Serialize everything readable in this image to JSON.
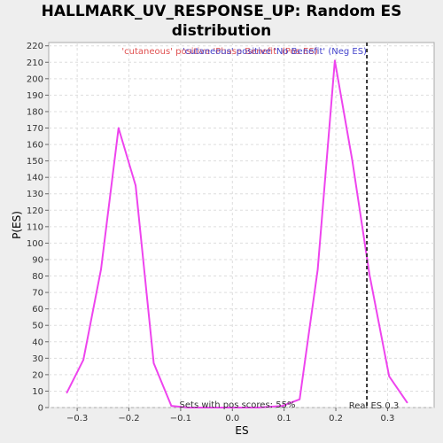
{
  "chart_data": {
    "type": "line",
    "title": "HALLMARK_UV_RESPONSE_UP: Random ES distribution",
    "xlabel": "ES",
    "ylabel": "P(ES)",
    "xlim": [
      -0.355,
      0.39
    ],
    "ylim": [
      0,
      222
    ],
    "x_ticks": [
      -0.3,
      -0.2,
      -0.1,
      0.0,
      0.1,
      0.2,
      0.3
    ],
    "x_tick_labels": [
      "−0.3",
      "−0.2",
      "−0.1",
      "0.0",
      "0.1",
      "0.2",
      "0.3"
    ],
    "y_ticks": [
      0,
      10,
      20,
      30,
      40,
      50,
      60,
      70,
      80,
      90,
      100,
      110,
      120,
      130,
      140,
      150,
      160,
      170,
      180,
      190,
      200,
      210,
      220
    ],
    "grid": true,
    "series": [
      {
        "color": "#ee44ee",
        "x": [
          -0.32,
          -0.288,
          -0.254,
          -0.22,
          -0.187,
          -0.152,
          -0.118,
          -0.085,
          -0.05,
          -0.017,
          0.017,
          0.05,
          0.097,
          0.13,
          0.165,
          0.198,
          0.232,
          0.265,
          0.303,
          0.338
        ],
        "y": [
          9,
          29,
          84,
          170,
          135,
          27,
          1,
          0,
          0,
          0,
          0,
          0,
          1,
          5,
          84,
          211,
          150,
          81,
          19,
          3
        ]
      }
    ],
    "real_es": 0.26,
    "annotations": {
      "legend_pos": "'cutaneous' positive 'Phase Benefit' (Pos ES)",
      "legend_neg": "'cutaneous' positive 'No Benefit' (Neg ES)",
      "pos_scores": "Sets with pos scores: 55%",
      "real_es_label": "Real ES 0.3"
    },
    "colors": {
      "pos": "#e05050",
      "neg": "#4444cc",
      "line": "#ee44ee",
      "marker": "#333333"
    }
  }
}
